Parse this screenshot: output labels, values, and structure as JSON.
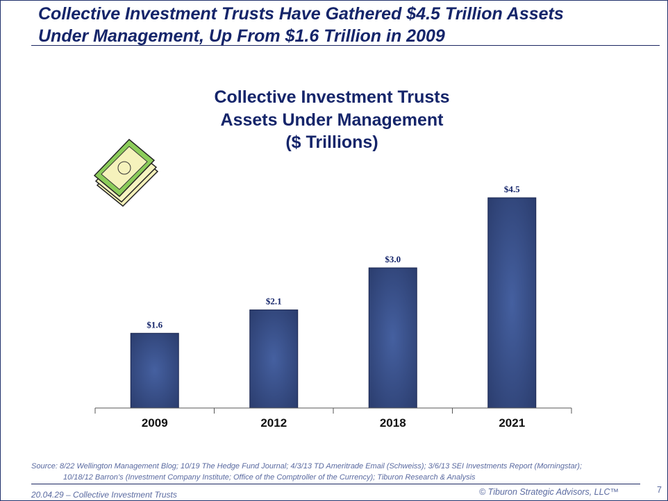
{
  "slide": {
    "title_line1": "Collective Investment Trusts Have Gathered $4.5 Trillion Assets",
    "title_line2": "Under Management, Up From $1.6 Trillion in 2009",
    "source_line1": "Source:  8/22 Wellington Management Blog; 10/19 The Hedge Fund Journal; 4/3/13 TD  Ameritrade Email (Schweiss); 3/6/13 SEI Investments Report (Morningstar);",
    "source_line2": "10/18/12 Barron’s (Investment Company Institute; Office of the Comptroller of the Currency); Tiburon Research & Analysis",
    "footer_left": "20.04.29 – Collective  Investment  Trusts",
    "footer_right": "© Tiburon Strategic Advisors, LLC™",
    "page_number": "7",
    "icon": "money-stack-icon"
  },
  "chart_data": {
    "type": "bar",
    "title_lines": [
      "Collective Investment Trusts",
      "Assets Under Management",
      "($ Trillions)"
    ],
    "categories": [
      "2009",
      "2012",
      "2018",
      "2021"
    ],
    "values": [
      1.6,
      2.1,
      3.0,
      4.5
    ],
    "data_labels": [
      "$1.6",
      "$2.1",
      "$3.0",
      "$4.5"
    ],
    "xlabel": "",
    "ylabel": "",
    "ylim": [
      0,
      4.5
    ],
    "grid": false,
    "colors": {
      "bar_center": "#4560a0",
      "bar_edge": "#2b3d6e",
      "bar_border": "#1a2650",
      "text": "#15256a"
    }
  }
}
